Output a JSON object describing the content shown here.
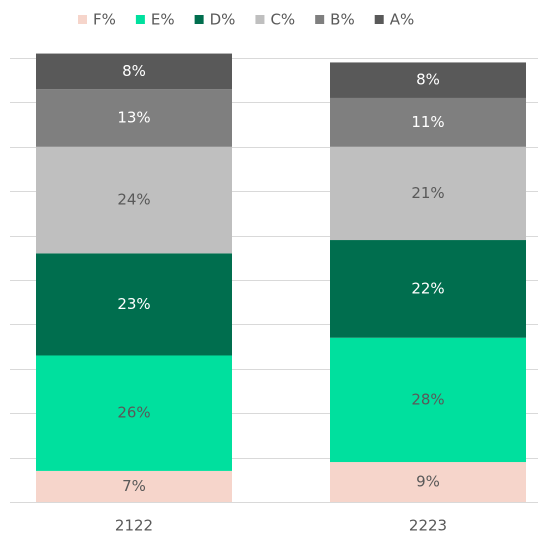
{
  "chart_data": {
    "type": "stacked_bar",
    "categories": [
      "2122",
      "2223"
    ],
    "series": [
      {
        "name": "F%",
        "color": "#f6d5cb",
        "values": [
          7,
          9
        ],
        "value_labels": [
          "7%",
          "9%"
        ]
      },
      {
        "name": "E%",
        "color": "#00e09e",
        "values": [
          26,
          28
        ],
        "value_labels": [
          "26%",
          "28%"
        ]
      },
      {
        "name": "D%",
        "color": "#006e4e",
        "values": [
          23,
          22
        ],
        "value_labels": [
          "23%",
          "22%"
        ]
      },
      {
        "name": "C%",
        "color": "#bfbfbf",
        "values": [
          24,
          21
        ],
        "value_labels": [
          "24%",
          "21%"
        ]
      },
      {
        "name": "B%",
        "color": "#7f7f7f",
        "values": [
          13,
          11
        ],
        "value_labels": [
          "13%",
          "11%"
        ]
      },
      {
        "name": "A%",
        "color": "#595959",
        "values": [
          8,
          8
        ],
        "value_labels": [
          "8%",
          "8%"
        ]
      }
    ],
    "ylim": [
      0,
      100
    ],
    "yticks": [
      0,
      10,
      20,
      30,
      40,
      50,
      60,
      70,
      80,
      90,
      100
    ],
    "grid": true,
    "tick_labels": false,
    "legend": "top"
  }
}
